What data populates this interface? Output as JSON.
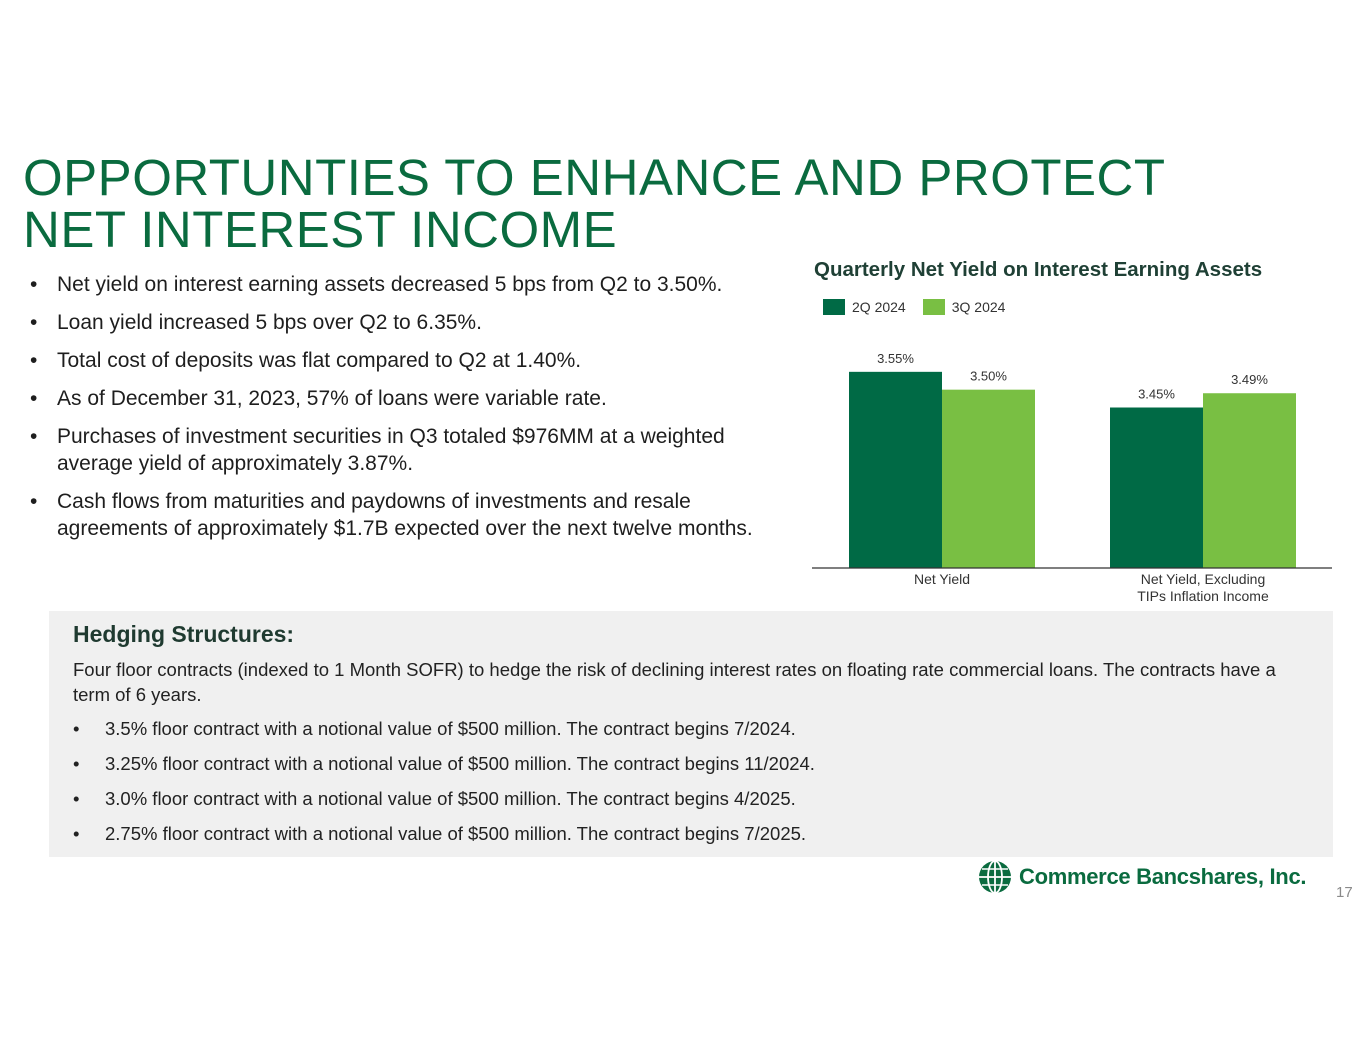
{
  "title": {
    "line1": "OPPORTUNTIES TO ENHANCE AND PROTECT",
    "line2": "NET INTEREST INCOME"
  },
  "bullets": [
    "Net yield on interest earning assets decreased 5 bps from Q2 to 3.50%.",
    "Loan yield increased 5 bps over Q2 to 6.35%.",
    "Total cost of deposits was flat compared to Q2 at 1.40%.",
    "As of December 31, 2023, 57% of loans were variable rate.",
    "Purchases of investment securities in Q3 totaled $976MM at a weighted average yield of approximately 3.87%.",
    "Cash flows from maturities and paydowns of investments and resale agreements of approximately $1.7B expected over the next twelve months."
  ],
  "chart_data": {
    "type": "bar",
    "title": "Quarterly Net Yield on Interest Earning Assets",
    "categories": [
      "Net Yield",
      "Net Yield, Excluding TIPs Inflation Income"
    ],
    "category_lines": [
      [
        "Net Yield"
      ],
      [
        "Net Yield, Excluding",
        "TIPs Inflation Income"
      ]
    ],
    "series": [
      {
        "name": "2Q 2024",
        "values": [
          3.55,
          3.45
        ],
        "labels": [
          "3.55%",
          "3.45%"
        ],
        "color": "#006a45"
      },
      {
        "name": "3Q 2024",
        "values": [
          3.5,
          3.49
        ],
        "labels": [
          "3.50%",
          "3.49%"
        ],
        "color": "#79bf43"
      }
    ],
    "ylim": [
      3.0,
      3.6
    ],
    "xlabel": "",
    "ylabel": "",
    "legend_position": "top-left",
    "grid": false
  },
  "hedging": {
    "title": "Hedging Structures:",
    "description": "Four floor contracts (indexed to 1 Month SOFR) to hedge the risk of declining interest rates on floating rate commercial loans. The contracts have a term of 6 years.",
    "items": [
      "3.5% floor contract with a notional value of $500 million. The contract begins 7/2024.",
      "3.25% floor contract with a notional value of $500 million. The contract begins 11/2024.",
      "3.0% floor contract with a notional value of $500 million. The contract begins 4/2025.",
      "2.75% floor contract with a notional value of $500 million. The contract begins 7/2025."
    ]
  },
  "logo": {
    "text": "Commerce Bancshares, Inc.",
    "icon": "globe-icon"
  },
  "page_number": "17",
  "colors": {
    "brand_green": "#0a6b3f",
    "dark_green": "#006a45",
    "light_green": "#79bf43",
    "panel_bg": "#f0f0f0"
  }
}
